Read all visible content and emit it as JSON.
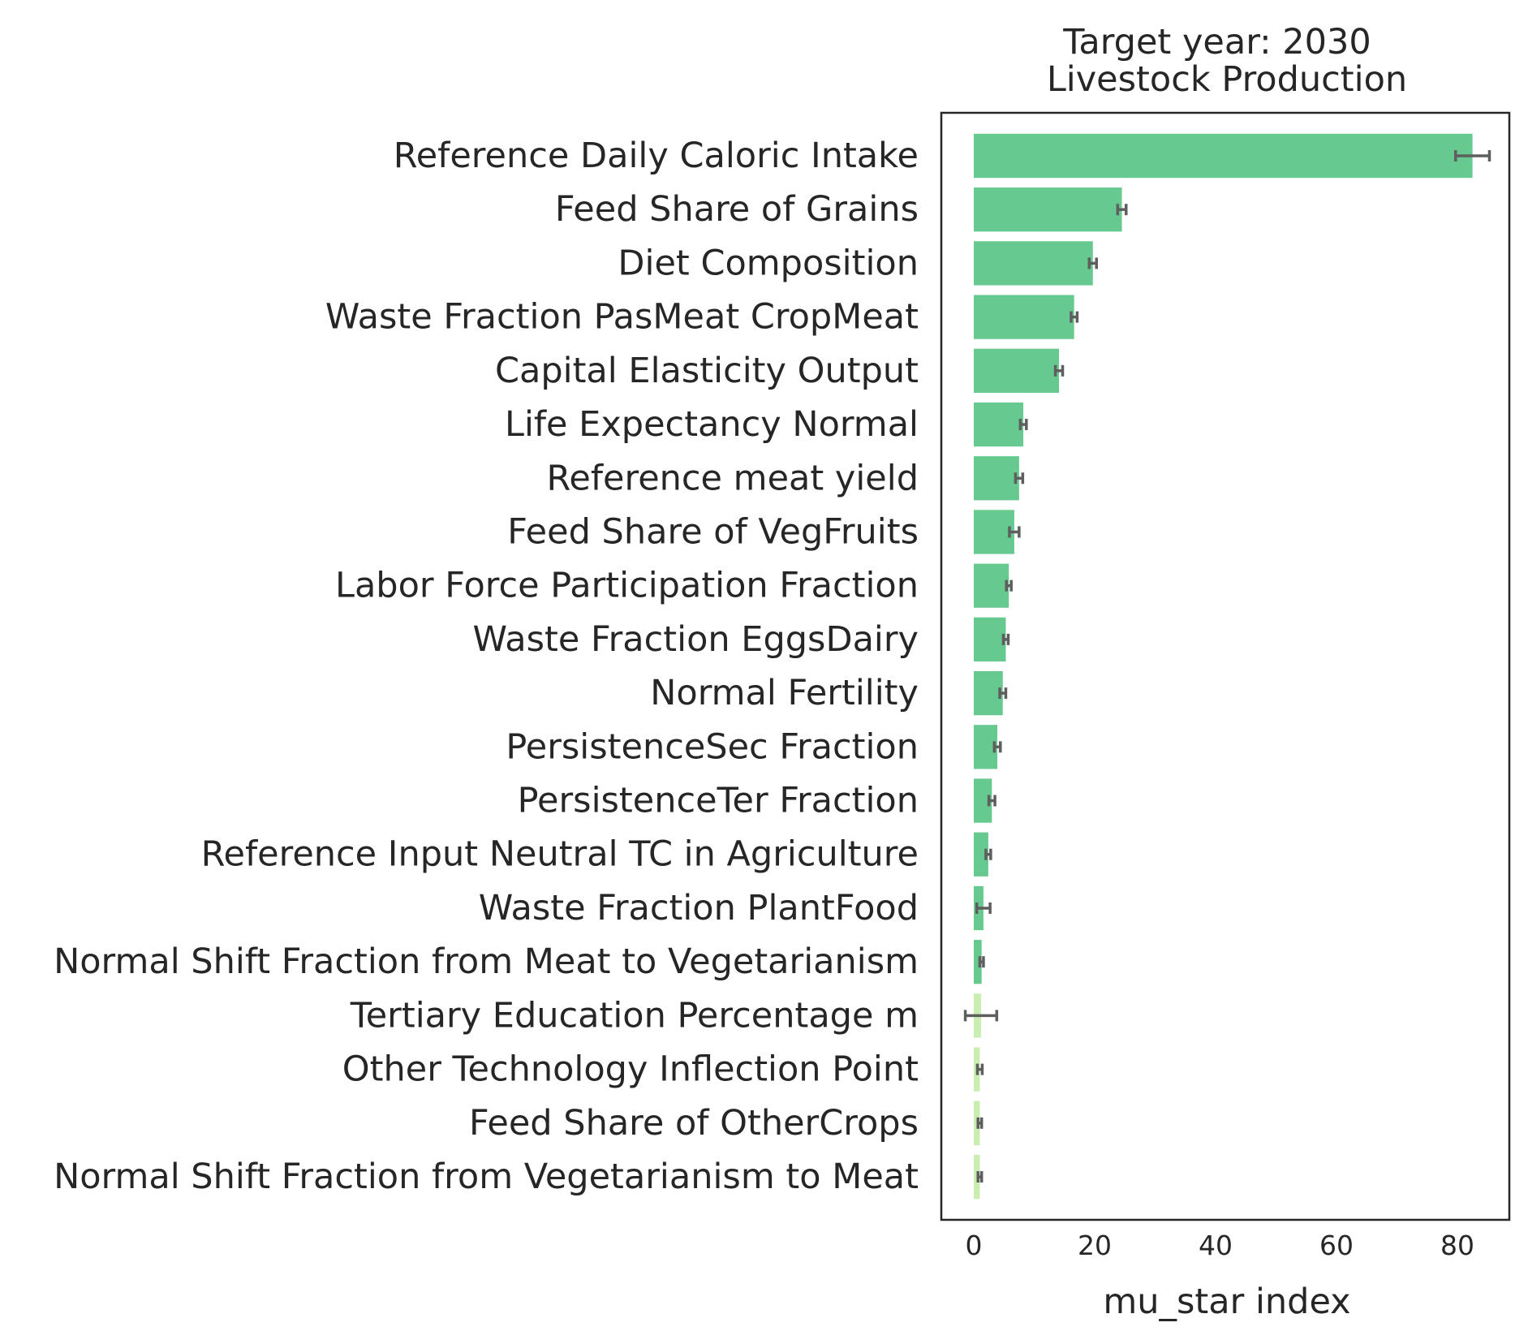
{
  "chart_data": {
    "type": "bar",
    "orientation": "horizontal",
    "title": "Target year: 2030",
    "subtitle": "Livestock Production",
    "xlabel": "mu_star index",
    "ylabel": "",
    "xlim": [
      -5,
      89
    ],
    "xticks": [
      0,
      20,
      40,
      60,
      80
    ],
    "grid": false,
    "colors": {
      "significant": "#66c990",
      "insignificant": "#c9eeb0",
      "error": "#5e5e5e",
      "frame": "#262626"
    },
    "categories": [
      "Reference Daily Caloric Intake",
      "Feed Share of Grains",
      "Diet Composition",
      "Waste Fraction PasMeat CropMeat",
      "Capital Elasticity Output",
      "Life Expectancy Normal",
      "Reference meat yield",
      "Feed Share of VegFruits",
      "Labor Force Participation Fraction",
      "Waste Fraction EggsDairy",
      "Normal Fertility",
      "PersistenceSec Fraction",
      "PersistenceTer Fraction",
      "Reference Input Neutral TC in Agriculture",
      "Waste Fraction PlantFood",
      "Normal Shift Fraction from Meat to Vegetarianism",
      "Tertiary Education Percentage m",
      "Other Technology Inflection Point",
      "Feed Share of OtherCrops",
      "Normal Shift Fraction from Vegetarianism to Meat"
    ],
    "values": [
      82.5,
      24.5,
      19.7,
      16.6,
      14.1,
      8.2,
      7.5,
      6.7,
      5.8,
      5.3,
      4.8,
      3.9,
      3.0,
      2.4,
      1.6,
      1.3,
      1.2,
      1.0,
      1.0,
      1.0
    ],
    "errors": [
      2.8,
      0.7,
      0.6,
      0.5,
      0.6,
      0.5,
      0.6,
      0.8,
      0.4,
      0.4,
      0.5,
      0.5,
      0.5,
      0.4,
      1.1,
      0.3,
      2.6,
      0.4,
      0.3,
      0.3
    ],
    "significant": [
      true,
      true,
      true,
      true,
      true,
      true,
      true,
      true,
      true,
      true,
      true,
      true,
      true,
      true,
      true,
      true,
      false,
      false,
      false,
      false
    ]
  }
}
